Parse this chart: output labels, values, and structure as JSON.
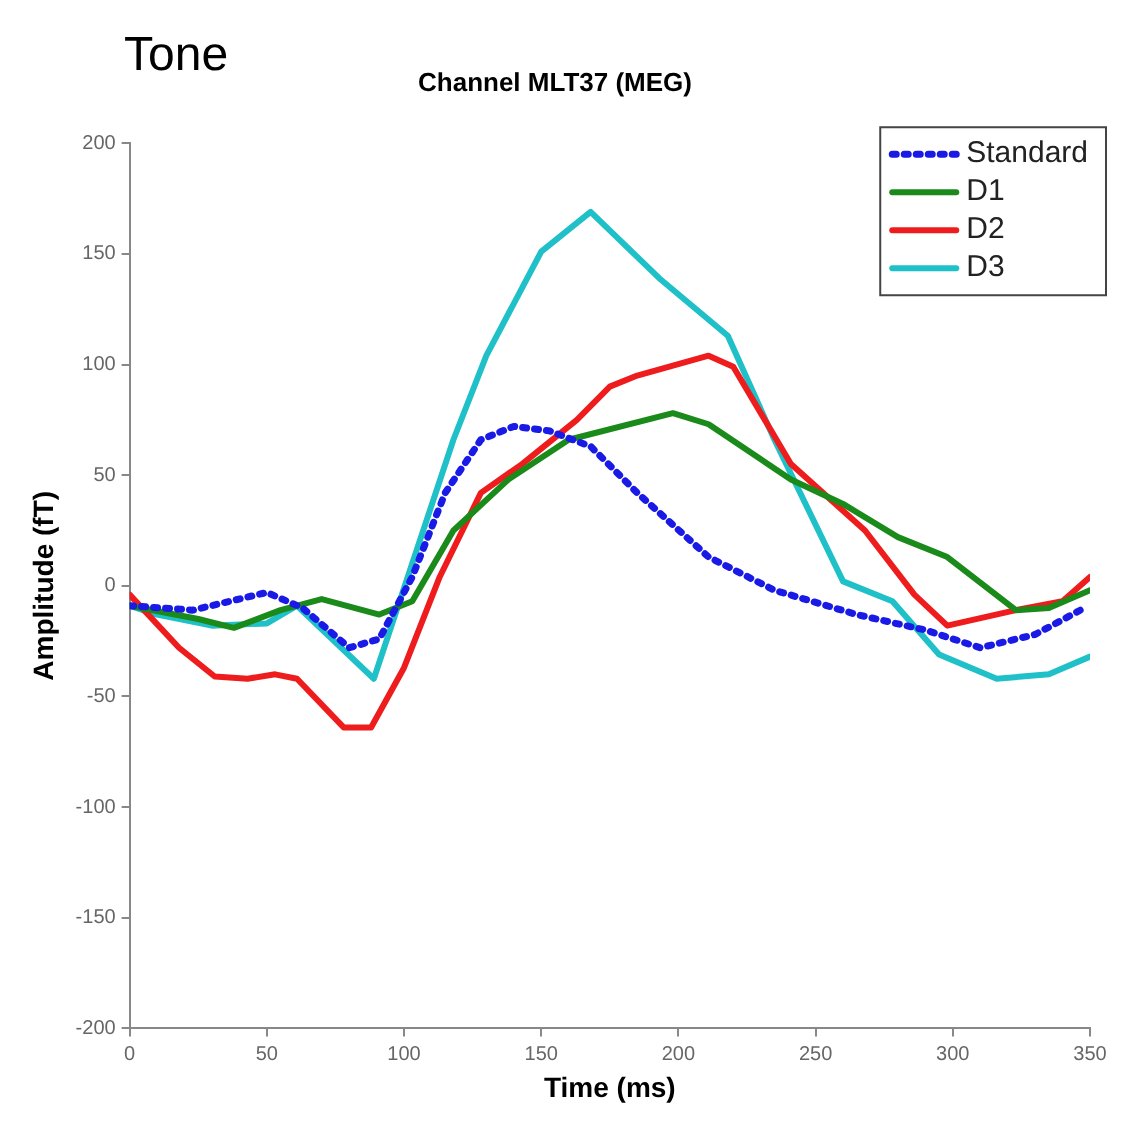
{
  "chart_data": {
    "type": "line",
    "title": "Tone",
    "subtitle": "Channel MLT37 (MEG)",
    "xlabel": "Time (ms)",
    "ylabel": "Amplitude (fT)",
    "xlim": [
      0,
      350
    ],
    "xticks": [
      0,
      50,
      100,
      150,
      200,
      250,
      300,
      350
    ],
    "ylim": [
      -200,
      200
    ],
    "yticks": [
      -200,
      -150,
      -100,
      -50,
      0,
      50,
      100,
      150,
      200
    ],
    "grid": false,
    "legend": "top right",
    "marker": "none",
    "series": [
      {
        "name": "Standard",
        "color": "#1a1ae6",
        "line_style": "dotted",
        "x": [
          0,
          23,
          50,
          63,
          80,
          91,
          103,
          115,
          128,
          140,
          153,
          168,
          185,
          211,
          235,
          265,
          290,
          310,
          330,
          348
        ],
        "values": [
          -9,
          -11,
          -3,
          -10,
          -28,
          -24,
          4,
          42,
          66,
          72,
          70,
          63,
          42,
          13,
          -2,
          -13,
          -20,
          -28,
          -22,
          -10
        ]
      },
      {
        "name": "D1",
        "color": "#1a8a1a",
        "line_style": "solid",
        "x": [
          0,
          25,
          38,
          55,
          70,
          91,
          103,
          118,
          138,
          160,
          198,
          211,
          241,
          260,
          280,
          298,
          323,
          335,
          350
        ],
        "values": [
          -9,
          -15,
          -19,
          -11,
          -6,
          -13,
          -7,
          25,
          48,
          66,
          78,
          73,
          48,
          37,
          22,
          13,
          -11,
          -10,
          -2
        ]
      },
      {
        "name": "D2",
        "color": "#ee1c1c",
        "line_style": "solid",
        "x": [
          0,
          18,
          31,
          43,
          53,
          61,
          78,
          88,
          100,
          113,
          128,
          143,
          163,
          175,
          185,
          211,
          220,
          241,
          268,
          286,
          298,
          323,
          340,
          350
        ],
        "values": [
          -4,
          -28,
          -41,
          -42,
          -40,
          -42,
          -64,
          -64,
          -37,
          4,
          42,
          55,
          75,
          90,
          95,
          104,
          99,
          55,
          25,
          -4,
          -18,
          -11,
          -7,
          4
        ]
      },
      {
        "name": "D3",
        "color": "#1fc0c8",
        "line_style": "solid",
        "x": [
          0,
          10,
          30,
          50,
          61,
          89,
          118,
          130,
          150,
          168,
          193,
          218,
          235,
          260,
          278,
          295,
          316,
          335,
          350
        ],
        "values": [
          -9,
          -13,
          -18,
          -17,
          -9,
          -42,
          66,
          104,
          151,
          169,
          139,
          113,
          66,
          2,
          -7,
          -31,
          -42,
          -40,
          -32
        ]
      }
    ]
  }
}
